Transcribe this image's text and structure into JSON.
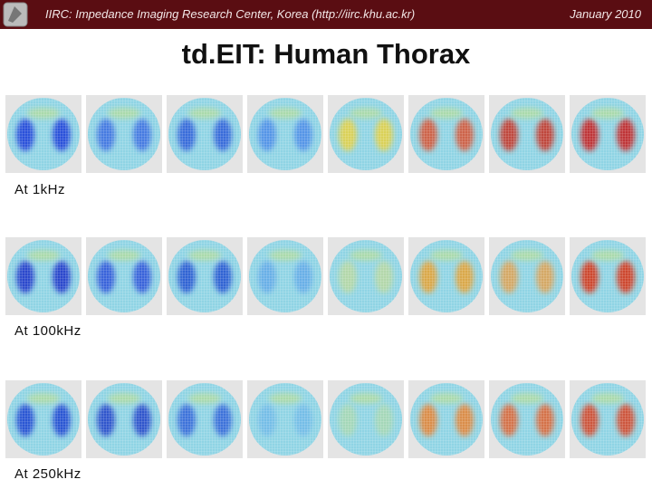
{
  "header": {
    "left": "IIRC: Impedance Imaging Research Center, Korea (http://iirc.khu.ac.kr)",
    "right": "January 2010"
  },
  "title": "td.EIT: Human Thorax",
  "rows": [
    {
      "label": "At 1kHz"
    },
    {
      "label": "At 100kHz"
    },
    {
      "label": "At 250kHz"
    }
  ]
}
